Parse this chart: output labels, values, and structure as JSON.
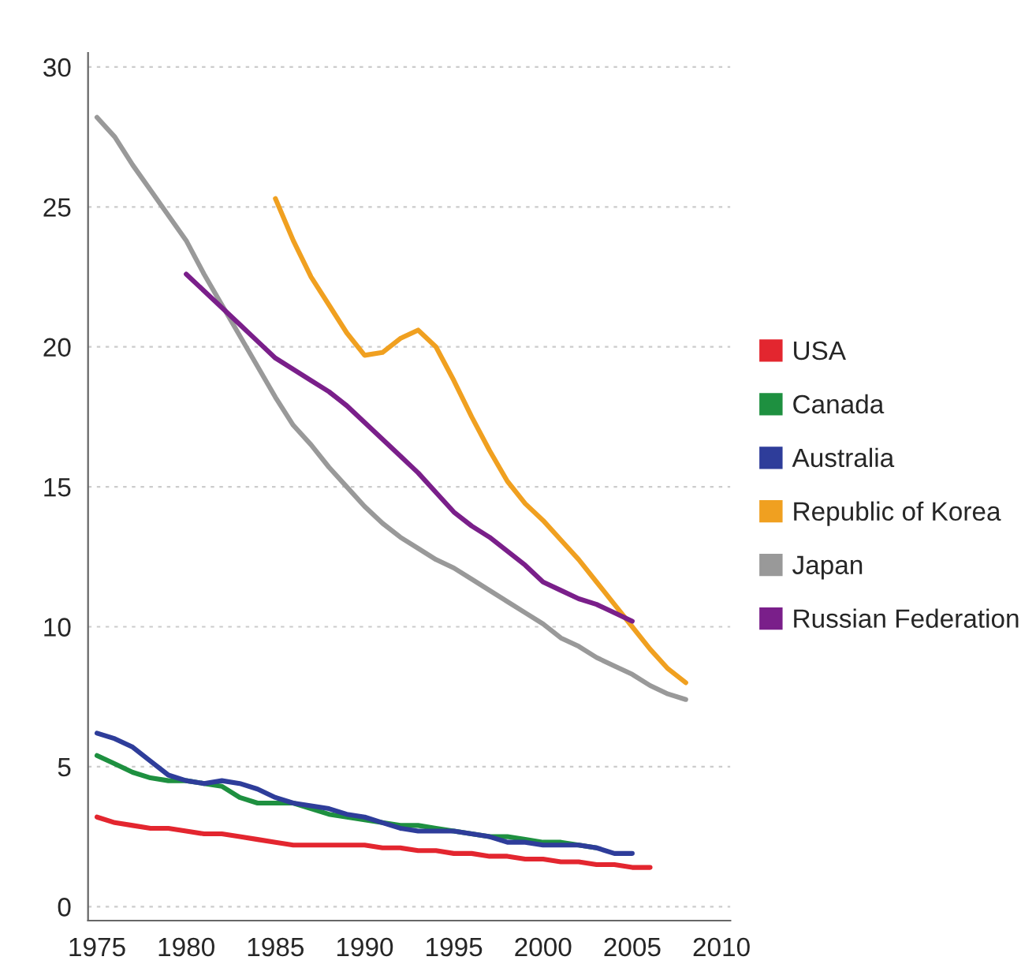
{
  "chart_data": {
    "type": "line",
    "xlim": [
      1974.5,
      2010.5
    ],
    "xticks": [
      1975,
      1980,
      1985,
      1990,
      1995,
      2000,
      2005,
      2010
    ],
    "ylim": [
      -0.5,
      30.5
    ],
    "yticks": [
      0,
      5,
      10,
      15,
      20,
      25,
      30
    ],
    "grid": "y",
    "legend": "right",
    "line_style": "solid",
    "marker": "none",
    "series": [
      {
        "name": "USA",
        "color": "#e3262f",
        "x": [
          1975,
          1976,
          1977,
          1978,
          1979,
          1980,
          1981,
          1982,
          1983,
          1984,
          1985,
          1986,
          1987,
          1988,
          1989,
          1990,
          1991,
          1992,
          1993,
          1994,
          1995,
          1996,
          1997,
          1998,
          1999,
          2000,
          2001,
          2002,
          2003,
          2004,
          2005,
          2006
        ],
        "values": [
          3.2,
          3.0,
          2.9,
          2.8,
          2.8,
          2.7,
          2.6,
          2.6,
          2.5,
          2.4,
          2.3,
          2.2,
          2.2,
          2.2,
          2.2,
          2.2,
          2.1,
          2.1,
          2.0,
          2.0,
          1.9,
          1.9,
          1.8,
          1.8,
          1.7,
          1.7,
          1.6,
          1.6,
          1.5,
          1.5,
          1.4,
          1.4
        ]
      },
      {
        "name": "Canada",
        "color": "#1e9040",
        "x": [
          1975,
          1976,
          1977,
          1978,
          1979,
          1980,
          1981,
          1982,
          1983,
          1984,
          1985,
          1986,
          1987,
          1988,
          1989,
          1990,
          1991,
          1992,
          1993,
          1994,
          1995,
          1996,
          1997,
          1998,
          1999,
          2000,
          2001,
          2002,
          2003
        ],
        "values": [
          5.4,
          5.1,
          4.8,
          4.6,
          4.5,
          4.5,
          4.4,
          4.3,
          3.9,
          3.7,
          3.7,
          3.7,
          3.5,
          3.3,
          3.2,
          3.1,
          3.0,
          2.9,
          2.9,
          2.8,
          2.7,
          2.6,
          2.5,
          2.5,
          2.4,
          2.3,
          2.3,
          2.2,
          2.1
        ]
      },
      {
        "name": "Australia",
        "color": "#2e3d9a",
        "x": [
          1975,
          1976,
          1977,
          1978,
          1979,
          1980,
          1981,
          1982,
          1983,
          1984,
          1985,
          1986,
          1987,
          1988,
          1989,
          1990,
          1991,
          1992,
          1993,
          1994,
          1995,
          1996,
          1997,
          1998,
          1999,
          2000,
          2001,
          2002,
          2003,
          2004,
          2005
        ],
        "values": [
          6.2,
          6.0,
          5.7,
          5.2,
          4.7,
          4.5,
          4.4,
          4.5,
          4.4,
          4.2,
          3.9,
          3.7,
          3.6,
          3.5,
          3.3,
          3.2,
          3.0,
          2.8,
          2.7,
          2.7,
          2.7,
          2.6,
          2.5,
          2.3,
          2.3,
          2.2,
          2.2,
          2.2,
          2.1,
          1.9,
          1.9
        ]
      },
      {
        "name": "Republic of Korea",
        "color": "#f0a020",
        "x": [
          1985,
          1986,
          1987,
          1988,
          1989,
          1990,
          1991,
          1992,
          1993,
          1994,
          1995,
          1996,
          1997,
          1998,
          1999,
          2000,
          2001,
          2002,
          2003,
          2004,
          2005,
          2006,
          2007,
          2008
        ],
        "values": [
          25.3,
          23.8,
          22.5,
          21.5,
          20.5,
          19.7,
          19.8,
          20.3,
          20.6,
          20.0,
          18.8,
          17.5,
          16.3,
          15.2,
          14.4,
          13.8,
          13.1,
          12.4,
          11.6,
          10.8,
          10.0,
          9.2,
          8.5,
          8.0
        ]
      },
      {
        "name": "Japan",
        "color": "#999999",
        "x": [
          1975,
          1976,
          1977,
          1978,
          1979,
          1980,
          1981,
          1982,
          1983,
          1984,
          1985,
          1986,
          1987,
          1988,
          1989,
          1990,
          1991,
          1992,
          1993,
          1994,
          1995,
          1996,
          1997,
          1998,
          1999,
          2000,
          2001,
          2002,
          2003,
          2004,
          2005,
          2006,
          2007,
          2008
        ],
        "values": [
          28.2,
          27.5,
          26.5,
          25.6,
          24.7,
          23.8,
          22.6,
          21.5,
          20.4,
          19.3,
          18.2,
          17.2,
          16.5,
          15.7,
          15.0,
          14.3,
          13.7,
          13.2,
          12.8,
          12.4,
          12.1,
          11.7,
          11.3,
          10.9,
          10.5,
          10.1,
          9.6,
          9.3,
          8.9,
          8.6,
          8.3,
          7.9,
          7.6,
          7.4
        ]
      },
      {
        "name": "Russian Federation",
        "color": "#7a1f8a",
        "x": [
          1980,
          1981,
          1982,
          1983,
          1984,
          1985,
          1986,
          1987,
          1988,
          1989,
          1990,
          1991,
          1992,
          1993,
          1994,
          1995,
          1996,
          1997,
          1998,
          1999,
          2000,
          2001,
          2002,
          2003,
          2004,
          2005
        ],
        "values": [
          22.6,
          22.0,
          21.4,
          20.8,
          20.2,
          19.6,
          19.2,
          18.8,
          18.4,
          17.9,
          17.3,
          16.7,
          16.1,
          15.5,
          14.8,
          14.1,
          13.6,
          13.2,
          12.7,
          12.2,
          11.6,
          11.3,
          11.0,
          10.8,
          10.5,
          10.2
        ]
      }
    ]
  }
}
